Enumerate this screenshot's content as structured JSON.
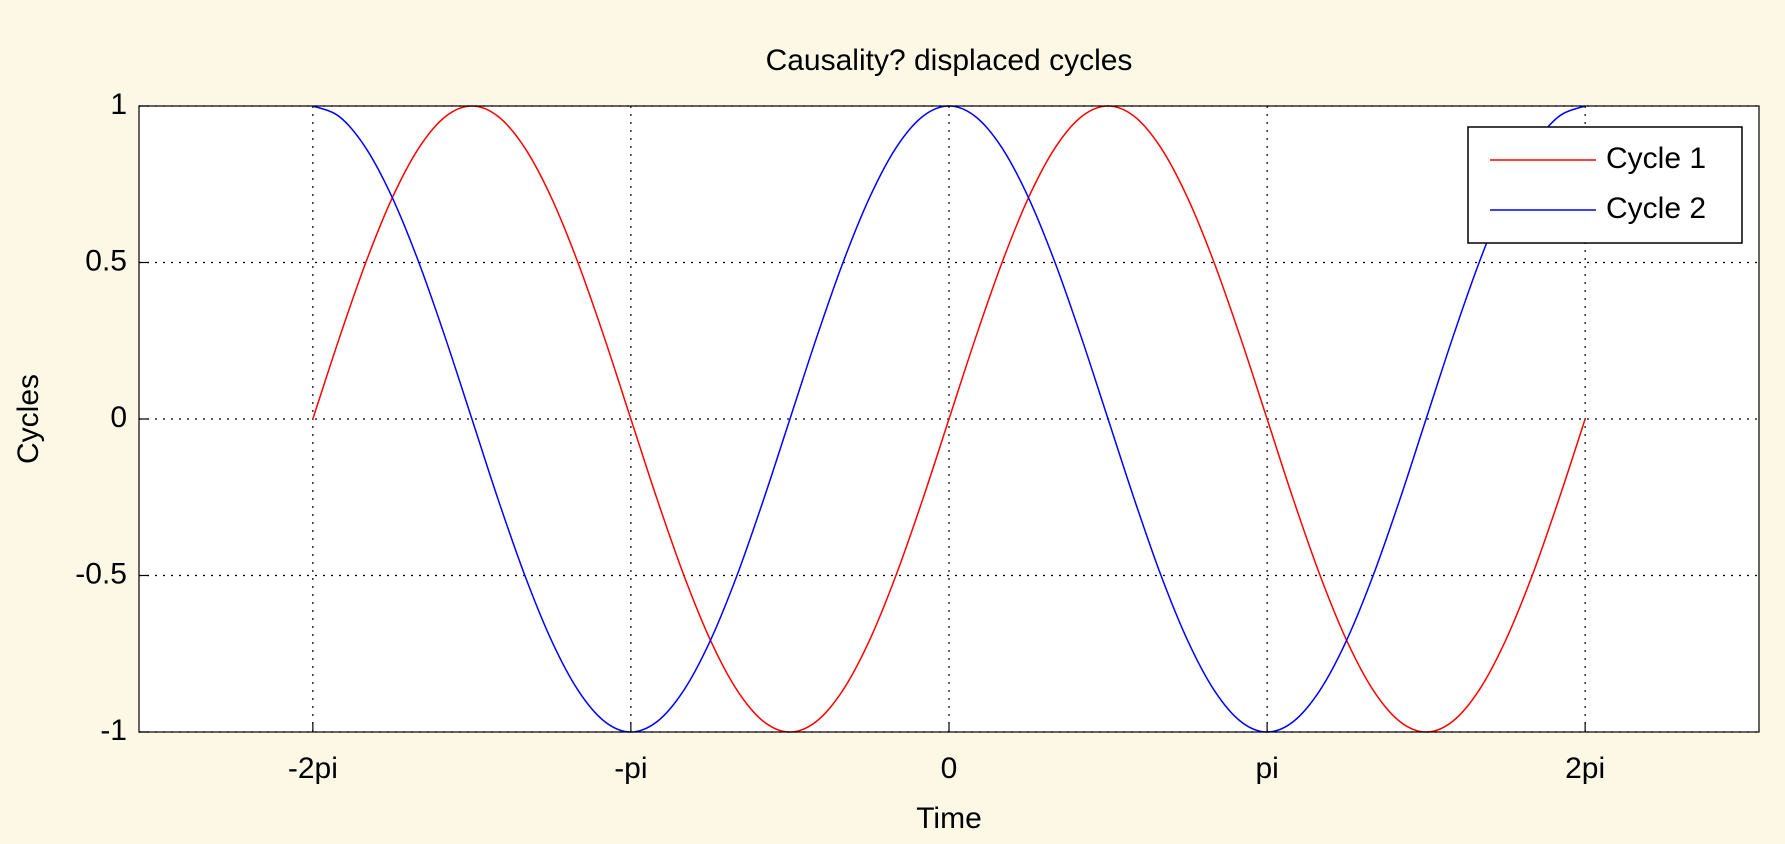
{
  "chart_data": {
    "type": "line",
    "title": "Causality? displaced cycles",
    "x_label": "Time",
    "y_label": "Cycles",
    "x": [
      -6.283,
      -6.021,
      -5.76,
      -5.498,
      -5.236,
      -4.974,
      -4.712,
      -4.451,
      -4.189,
      -3.927,
      -3.665,
      -3.403,
      -3.142,
      -2.88,
      -2.618,
      -2.356,
      -2.094,
      -1.833,
      -1.571,
      -1.309,
      -1.047,
      -0.785,
      -0.524,
      -0.262,
      0,
      0.262,
      0.524,
      0.785,
      1.047,
      1.309,
      1.571,
      1.833,
      2.094,
      2.356,
      2.618,
      2.88,
      3.142,
      3.403,
      3.665,
      3.927,
      4.189,
      4.451,
      4.712,
      4.974,
      5.236,
      5.498,
      5.76,
      6.021,
      6.283
    ],
    "series": [
      {
        "name": "Cycle 1",
        "color": "#ff0000",
        "values": [
          0,
          0.259,
          0.5,
          0.707,
          0.866,
          0.966,
          1,
          0.966,
          0.866,
          0.707,
          0.5,
          0.259,
          0,
          -0.259,
          -0.5,
          -0.707,
          -0.866,
          -0.966,
          -1,
          -0.966,
          -0.866,
          -0.707,
          -0.5,
          -0.259,
          0,
          0.259,
          0.5,
          0.707,
          0.866,
          0.966,
          1,
          0.966,
          0.866,
          0.707,
          0.5,
          0.259,
          0,
          -0.259,
          -0.5,
          -0.707,
          -0.866,
          -0.966,
          -1,
          -0.966,
          -0.866,
          -0.707,
          -0.5,
          -0.259,
          0
        ]
      },
      {
        "name": "Cycle 2",
        "color": "#0000ff",
        "values": [
          1,
          0.966,
          0.866,
          0.707,
          0.5,
          0.259,
          0,
          -0.259,
          -0.5,
          -0.707,
          -0.866,
          -0.966,
          -1,
          -0.966,
          -0.866,
          -0.707,
          -0.5,
          -0.259,
          0,
          0.259,
          0.5,
          0.707,
          0.866,
          0.966,
          1,
          0.966,
          0.866,
          0.707,
          0.5,
          0.259,
          0,
          -0.259,
          -0.5,
          -0.707,
          -0.866,
          -0.966,
          -1,
          -0.966,
          -0.866,
          -0.707,
          -0.5,
          -0.259,
          0,
          0.259,
          0.5,
          0.707,
          0.866,
          0.966,
          1
        ]
      }
    ],
    "xlim": [
      -8,
      8
    ],
    "ylim": [
      -1,
      1
    ],
    "xticks": [
      {
        "value": -6.283,
        "label": "-2pi"
      },
      {
        "value": -3.142,
        "label": "-pi"
      },
      0,
      {
        "value": 3.142,
        "label": "pi"
      },
      {
        "value": 6.283,
        "label": "2pi"
      }
    ],
    "yticks": [
      -1,
      -0.5,
      0,
      0.5,
      1
    ],
    "grid": true,
    "legend": "northeast"
  }
}
